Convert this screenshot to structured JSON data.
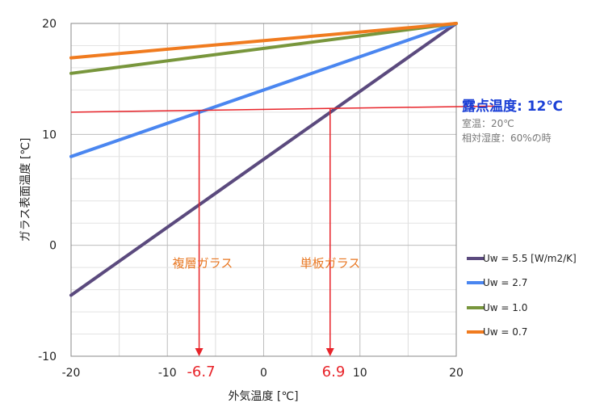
{
  "chart_data": {
    "type": "line",
    "xlabel": "外気温度 [℃]",
    "ylabel": "ガラス表面温度 [℃]",
    "xlim": [
      -20,
      20
    ],
    "ylim": [
      -10,
      20
    ],
    "x_ticks": [
      -20,
      -10,
      0,
      10,
      20
    ],
    "y_ticks": [
      -10,
      0,
      10,
      20
    ],
    "grid": true,
    "legend_position": "right",
    "series": [
      {
        "name": "Uw = 5.5 [W/m2/K]",
        "color": "#5b4a7e",
        "x": [
          -20,
          20
        ],
        "y": [
          -4.5,
          20
        ]
      },
      {
        "name": "Uw = 2.7",
        "color": "#4a86f0",
        "x": [
          -20,
          20
        ],
        "y": [
          8.0,
          20
        ]
      },
      {
        "name": "Uw = 1.0",
        "color": "#78963c",
        "x": [
          -20,
          20
        ],
        "y": [
          15.5,
          20
        ]
      },
      {
        "name": "Uw = 0.7",
        "color": "#f07b1f",
        "x": [
          -20,
          20
        ],
        "y": [
          16.9,
          20
        ]
      }
    ],
    "dew_point_line": {
      "color": "#e8242a",
      "x": [
        -20,
        20
      ],
      "y": [
        12.0,
        12.5
      ]
    },
    "annotations": {
      "dew_title": "露点温度: 12℃",
      "room_temp": "室温：20℃",
      "humidity": "相対湿度：60%の時",
      "double_glass": {
        "label": "複層ガラス",
        "x": -6.7,
        "x_label": "-6.7"
      },
      "single_glass": {
        "label": "単板ガラス",
        "x": 6.9,
        "x_label": "6.9"
      },
      "label_color": "#e87722",
      "arrow_color": "#e8242a"
    }
  }
}
